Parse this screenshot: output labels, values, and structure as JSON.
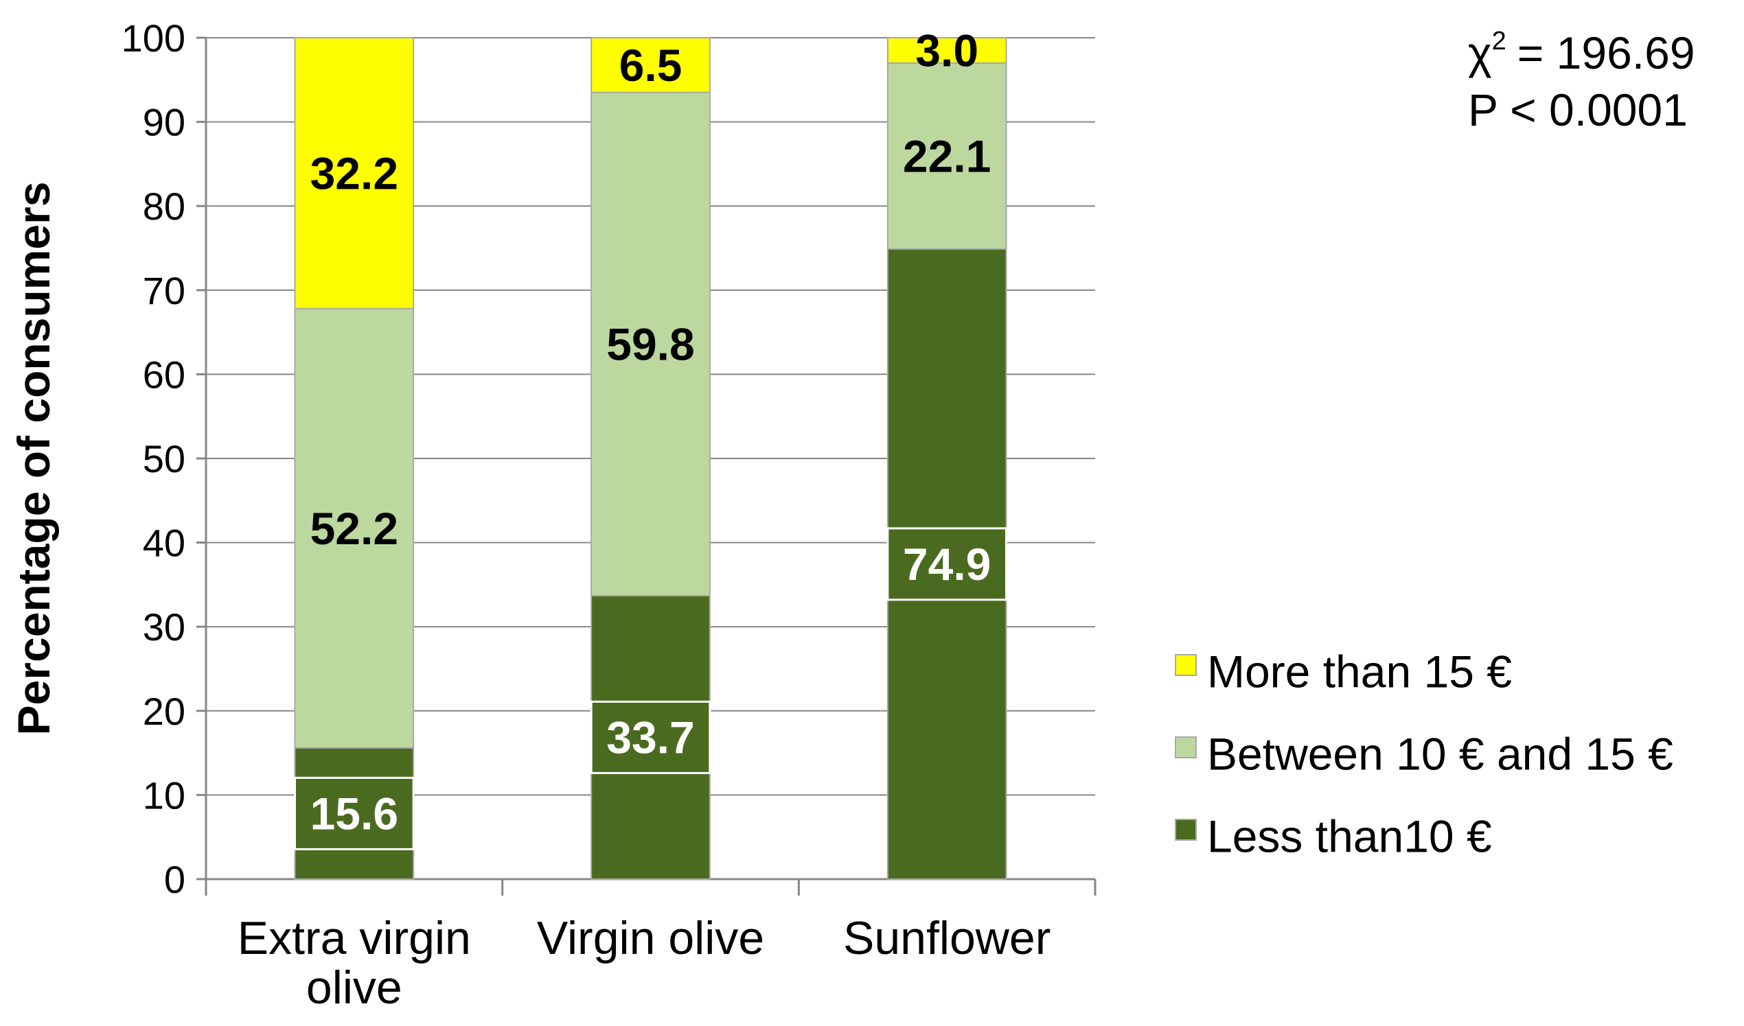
{
  "chart_data": {
    "type": "bar",
    "stacked": true,
    "categories": [
      "Extra virgin olive",
      "Virgin olive",
      "Sunflower"
    ],
    "series": [
      {
        "name": "Less than10 €",
        "values": [
          15.6,
          33.7,
          74.9
        ],
        "color": "#4a6b1f",
        "label_color": "#ffffff",
        "label_boxed": true
      },
      {
        "name": "Between 10 € and 15 €",
        "values": [
          52.2,
          59.8,
          22.1
        ],
        "color": "#bcd89f",
        "label_color": "#000000",
        "label_boxed": false
      },
      {
        "name": "More than 15 €",
        "values": [
          32.2,
          6.5,
          3.0
        ],
        "color": "#ffff00",
        "label_color": "#000000",
        "label_boxed": false
      }
    ],
    "ylabel": "Percentage of consumers",
    "xlabel": "",
    "ylim": [
      0,
      100
    ],
    "yticks": [
      0,
      10,
      20,
      30,
      40,
      50,
      60,
      70,
      80,
      90,
      100
    ],
    "grid": true,
    "legend": "right",
    "legend_order": [
      "More than 15 €",
      "Between 10 € and 15 €",
      "Less than10 €"
    ],
    "annotation": {
      "chi_symbol": "χ",
      "chi_exponent": "2",
      "chi_value": "= 196.69",
      "p_text": "P < 0.0001"
    }
  }
}
